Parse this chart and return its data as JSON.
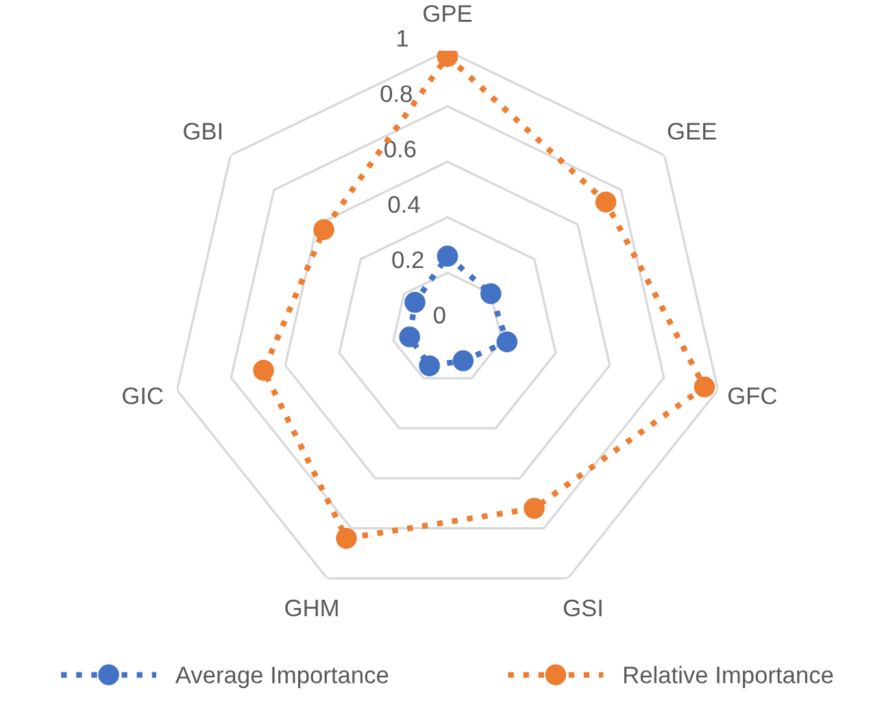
{
  "chart_data": {
    "type": "radar",
    "categories": [
      "GPE",
      "GEE",
      "GFC",
      "GSI",
      "GHM",
      "GIC",
      "GBI"
    ],
    "series": [
      {
        "name": "Average Importance",
        "color": "#4472c4",
        "values": [
          0.26,
          0.2,
          0.22,
          0.13,
          0.15,
          0.14,
          0.15
        ]
      },
      {
        "name": "Relative Importance",
        "color": "#ed7d31",
        "values": [
          0.98,
          0.73,
          0.95,
          0.72,
          0.84,
          0.68,
          0.57
        ]
      }
    ],
    "ylim": [
      0,
      1
    ],
    "yticks": [
      0,
      0.2,
      0.4,
      0.6,
      0.8,
      1
    ],
    "grid": true,
    "legend": "bottom",
    "marker": "circle",
    "line_style": "dotted"
  }
}
